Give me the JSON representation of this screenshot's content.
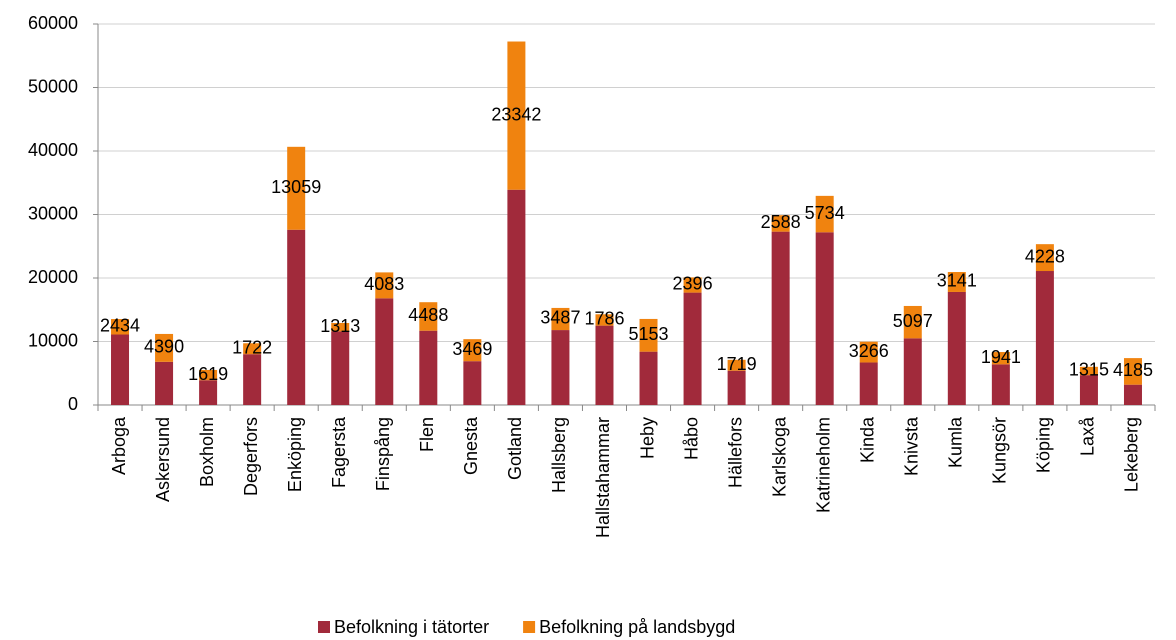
{
  "chart_data": {
    "type": "stacked_bar",
    "categories": [
      "Arboga",
      "Askersund",
      "Boxholm",
      "Degerfors",
      "Enköping",
      "Fagersta",
      "Finspång",
      "Flen",
      "Gnesta",
      "Gotland",
      "Hallsberg",
      "Hallstahammar",
      "Heby",
      "Håbo",
      "Hällefors",
      "Karlskoga",
      "Katrineholm",
      "Kinda",
      "Knivsta",
      "Kumla",
      "Kungsör",
      "Köping",
      "Laxå",
      "Lekeberg"
    ],
    "series": [
      {
        "name": "Befolkning i tätorter",
        "color": "#a12a3b",
        "values": [
          11100,
          6800,
          3900,
          8000,
          27600,
          11600,
          16800,
          11700,
          6900,
          33900,
          11800,
          12500,
          8400,
          17700,
          5400,
          27300,
          27200,
          6700,
          10500,
          17800,
          6400,
          21100,
          4700,
          3200
        ]
      },
      {
        "name": "Befolkning på landsbygd",
        "color": "#f0830f",
        "data_labels": true,
        "values": [
          2434,
          4390,
          1619,
          1722,
          13059,
          1313,
          4083,
          4488,
          3469,
          23342,
          3487,
          1786,
          5153,
          2396,
          1719,
          2588,
          5734,
          3266,
          5097,
          3141,
          1941,
          4228,
          1315,
          4185
        ]
      }
    ],
    "ylim": [
      0,
      60000
    ],
    "yticks": [
      0,
      10000,
      20000,
      30000,
      40000,
      50000,
      60000
    ],
    "grid": true,
    "legend": "bottom"
  }
}
